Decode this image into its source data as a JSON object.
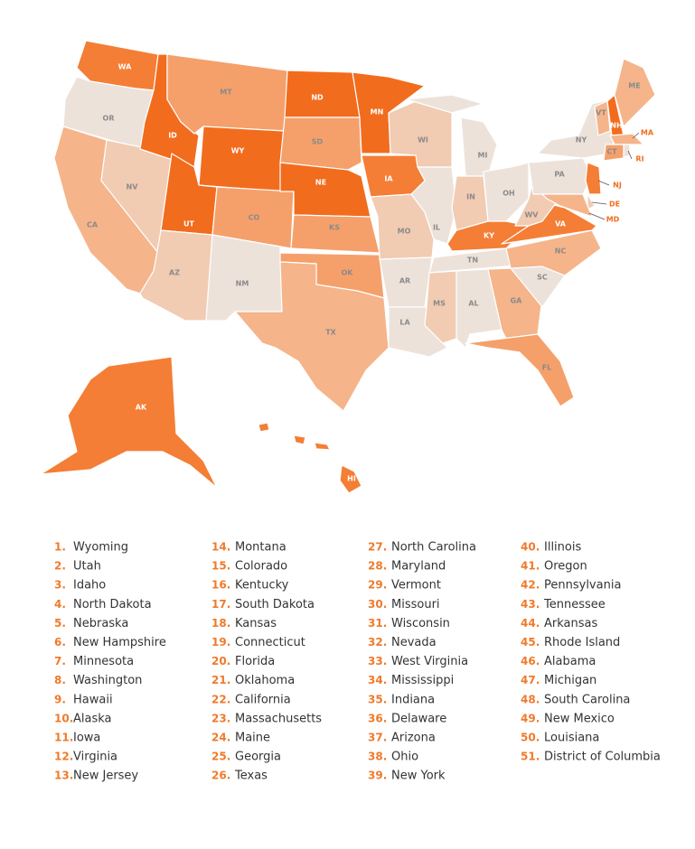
{
  "map": {
    "states": [
      {
        "abbr": "WA",
        "color": "#f47e35"
      },
      {
        "abbr": "OR",
        "color": "#ede2da"
      },
      {
        "abbr": "CA",
        "color": "#f5b48a"
      },
      {
        "abbr": "NV",
        "color": "#f1cbb2"
      },
      {
        "abbr": "ID",
        "color": "#f26c1e"
      },
      {
        "abbr": "MT",
        "color": "#f5a06b"
      },
      {
        "abbr": "WY",
        "color": "#f26c1e"
      },
      {
        "abbr": "UT",
        "color": "#f26c1e"
      },
      {
        "abbr": "AZ",
        "color": "#f1cbb2"
      },
      {
        "abbr": "CO",
        "color": "#f5a06b"
      },
      {
        "abbr": "NM",
        "color": "#ede2da"
      },
      {
        "abbr": "ND",
        "color": "#f26c1e"
      },
      {
        "abbr": "SD",
        "color": "#f5a06b"
      },
      {
        "abbr": "NE",
        "color": "#f26c1e"
      },
      {
        "abbr": "KS",
        "color": "#f5a06b"
      },
      {
        "abbr": "OK",
        "color": "#f5a06b"
      },
      {
        "abbr": "TX",
        "color": "#f5b48a"
      },
      {
        "abbr": "MN",
        "color": "#f26c1e"
      },
      {
        "abbr": "IA",
        "color": "#f47e35"
      },
      {
        "abbr": "MO",
        "color": "#f1cbb2"
      },
      {
        "abbr": "AR",
        "color": "#ede2da"
      },
      {
        "abbr": "LA",
        "color": "#ede2da"
      },
      {
        "abbr": "WI",
        "color": "#f1cbb2"
      },
      {
        "abbr": "IL",
        "color": "#ede2da"
      },
      {
        "abbr": "MI",
        "color": "#ede2da"
      },
      {
        "abbr": "IN",
        "color": "#f1cbb2"
      },
      {
        "abbr": "OH",
        "color": "#ede2da"
      },
      {
        "abbr": "KY",
        "color": "#f47e35"
      },
      {
        "abbr": "TN",
        "color": "#ede2da"
      },
      {
        "abbr": "MS",
        "color": "#f1cbb2"
      },
      {
        "abbr": "AL",
        "color": "#ede2da"
      },
      {
        "abbr": "GA",
        "color": "#f5b48a"
      },
      {
        "abbr": "FL",
        "color": "#f5a06b"
      },
      {
        "abbr": "SC",
        "color": "#ede2da"
      },
      {
        "abbr": "NC",
        "color": "#f5b48a"
      },
      {
        "abbr": "VA",
        "color": "#f47e35"
      },
      {
        "abbr": "WV",
        "color": "#f1cbb2"
      },
      {
        "abbr": "PA",
        "color": "#ede2da"
      },
      {
        "abbr": "NY",
        "color": "#ede2da"
      },
      {
        "abbr": "VT",
        "color": "#f5b48a"
      },
      {
        "abbr": "NH",
        "color": "#f26c1e"
      },
      {
        "abbr": "ME",
        "color": "#f5b48a"
      },
      {
        "abbr": "MA",
        "color": "#f5b48a"
      },
      {
        "abbr": "CT",
        "color": "#f5a06b"
      },
      {
        "abbr": "RI",
        "color": "#ede2da"
      },
      {
        "abbr": "NJ",
        "color": "#f47e35"
      },
      {
        "abbr": "DE",
        "color": "#f1cbb2"
      },
      {
        "abbr": "MD",
        "color": "#f5b48a"
      },
      {
        "abbr": "AK",
        "color": "#f47e35"
      },
      {
        "abbr": "HI",
        "color": "#f47e35"
      }
    ],
    "ranking": [
      {
        "rank": "1.",
        "name": "Wyoming"
      },
      {
        "rank": "2.",
        "name": "Utah"
      },
      {
        "rank": "3.",
        "name": "Idaho"
      },
      {
        "rank": "4.",
        "name": "North Dakota"
      },
      {
        "rank": "5.",
        "name": "Nebraska"
      },
      {
        "rank": "6.",
        "name": "New Hampshire"
      },
      {
        "rank": "7.",
        "name": "Minnesota"
      },
      {
        "rank": "8.",
        "name": "Washington"
      },
      {
        "rank": "9.",
        "name": "Hawaii"
      },
      {
        "rank": "10.",
        "name": "Alaska"
      },
      {
        "rank": "11.",
        "name": "Iowa"
      },
      {
        "rank": "12.",
        "name": "Virginia"
      },
      {
        "rank": "13.",
        "name": "New Jersey"
      },
      {
        "rank": "14.",
        "name": "Montana"
      },
      {
        "rank": "15.",
        "name": "Colorado"
      },
      {
        "rank": "16.",
        "name": "Kentucky"
      },
      {
        "rank": "17.",
        "name": "South Dakota"
      },
      {
        "rank": "18.",
        "name": "Kansas"
      },
      {
        "rank": "19.",
        "name": "Connecticut"
      },
      {
        "rank": "20.",
        "name": "Florida"
      },
      {
        "rank": "21.",
        "name": "Oklahoma"
      },
      {
        "rank": "22.",
        "name": "California"
      },
      {
        "rank": "23.",
        "name": "Massachusetts"
      },
      {
        "rank": "24.",
        "name": "Maine"
      },
      {
        "rank": "25.",
        "name": "Georgia"
      },
      {
        "rank": "26.",
        "name": "Texas"
      },
      {
        "rank": "27.",
        "name": "North Carolina"
      },
      {
        "rank": "28.",
        "name": "Maryland"
      },
      {
        "rank": "29.",
        "name": "Vermont"
      },
      {
        "rank": "30.",
        "name": "Missouri"
      },
      {
        "rank": "31.",
        "name": "Wisconsin"
      },
      {
        "rank": "32.",
        "name": "Nevada"
      },
      {
        "rank": "33.",
        "name": "West Virginia"
      },
      {
        "rank": "34.",
        "name": "Mississippi"
      },
      {
        "rank": "35.",
        "name": "Indiana"
      },
      {
        "rank": "36.",
        "name": "Delaware"
      },
      {
        "rank": "37.",
        "name": "Arizona"
      },
      {
        "rank": "38.",
        "name": "Ohio"
      },
      {
        "rank": "39.",
        "name": "New York"
      },
      {
        "rank": "40.",
        "name": "Illinois"
      },
      {
        "rank": "41.",
        "name": "Oregon"
      },
      {
        "rank": "42.",
        "name": "Pennsylvania"
      },
      {
        "rank": "43.",
        "name": "Tennessee"
      },
      {
        "rank": "44.",
        "name": "Arkansas"
      },
      {
        "rank": "45.",
        "name": "Rhode Island"
      },
      {
        "rank": "46.",
        "name": "Alabama"
      },
      {
        "rank": "47.",
        "name": "Michigan"
      },
      {
        "rank": "48.",
        "name": "South Carolina"
      },
      {
        "rank": "49.",
        "name": "New Mexico"
      },
      {
        "rank": "50.",
        "name": "Louisiana"
      },
      {
        "rank": "51.",
        "name": "District of Columbia"
      }
    ],
    "rank_color": "#f07a2a",
    "outside_label_color": "#f26c1e"
  }
}
